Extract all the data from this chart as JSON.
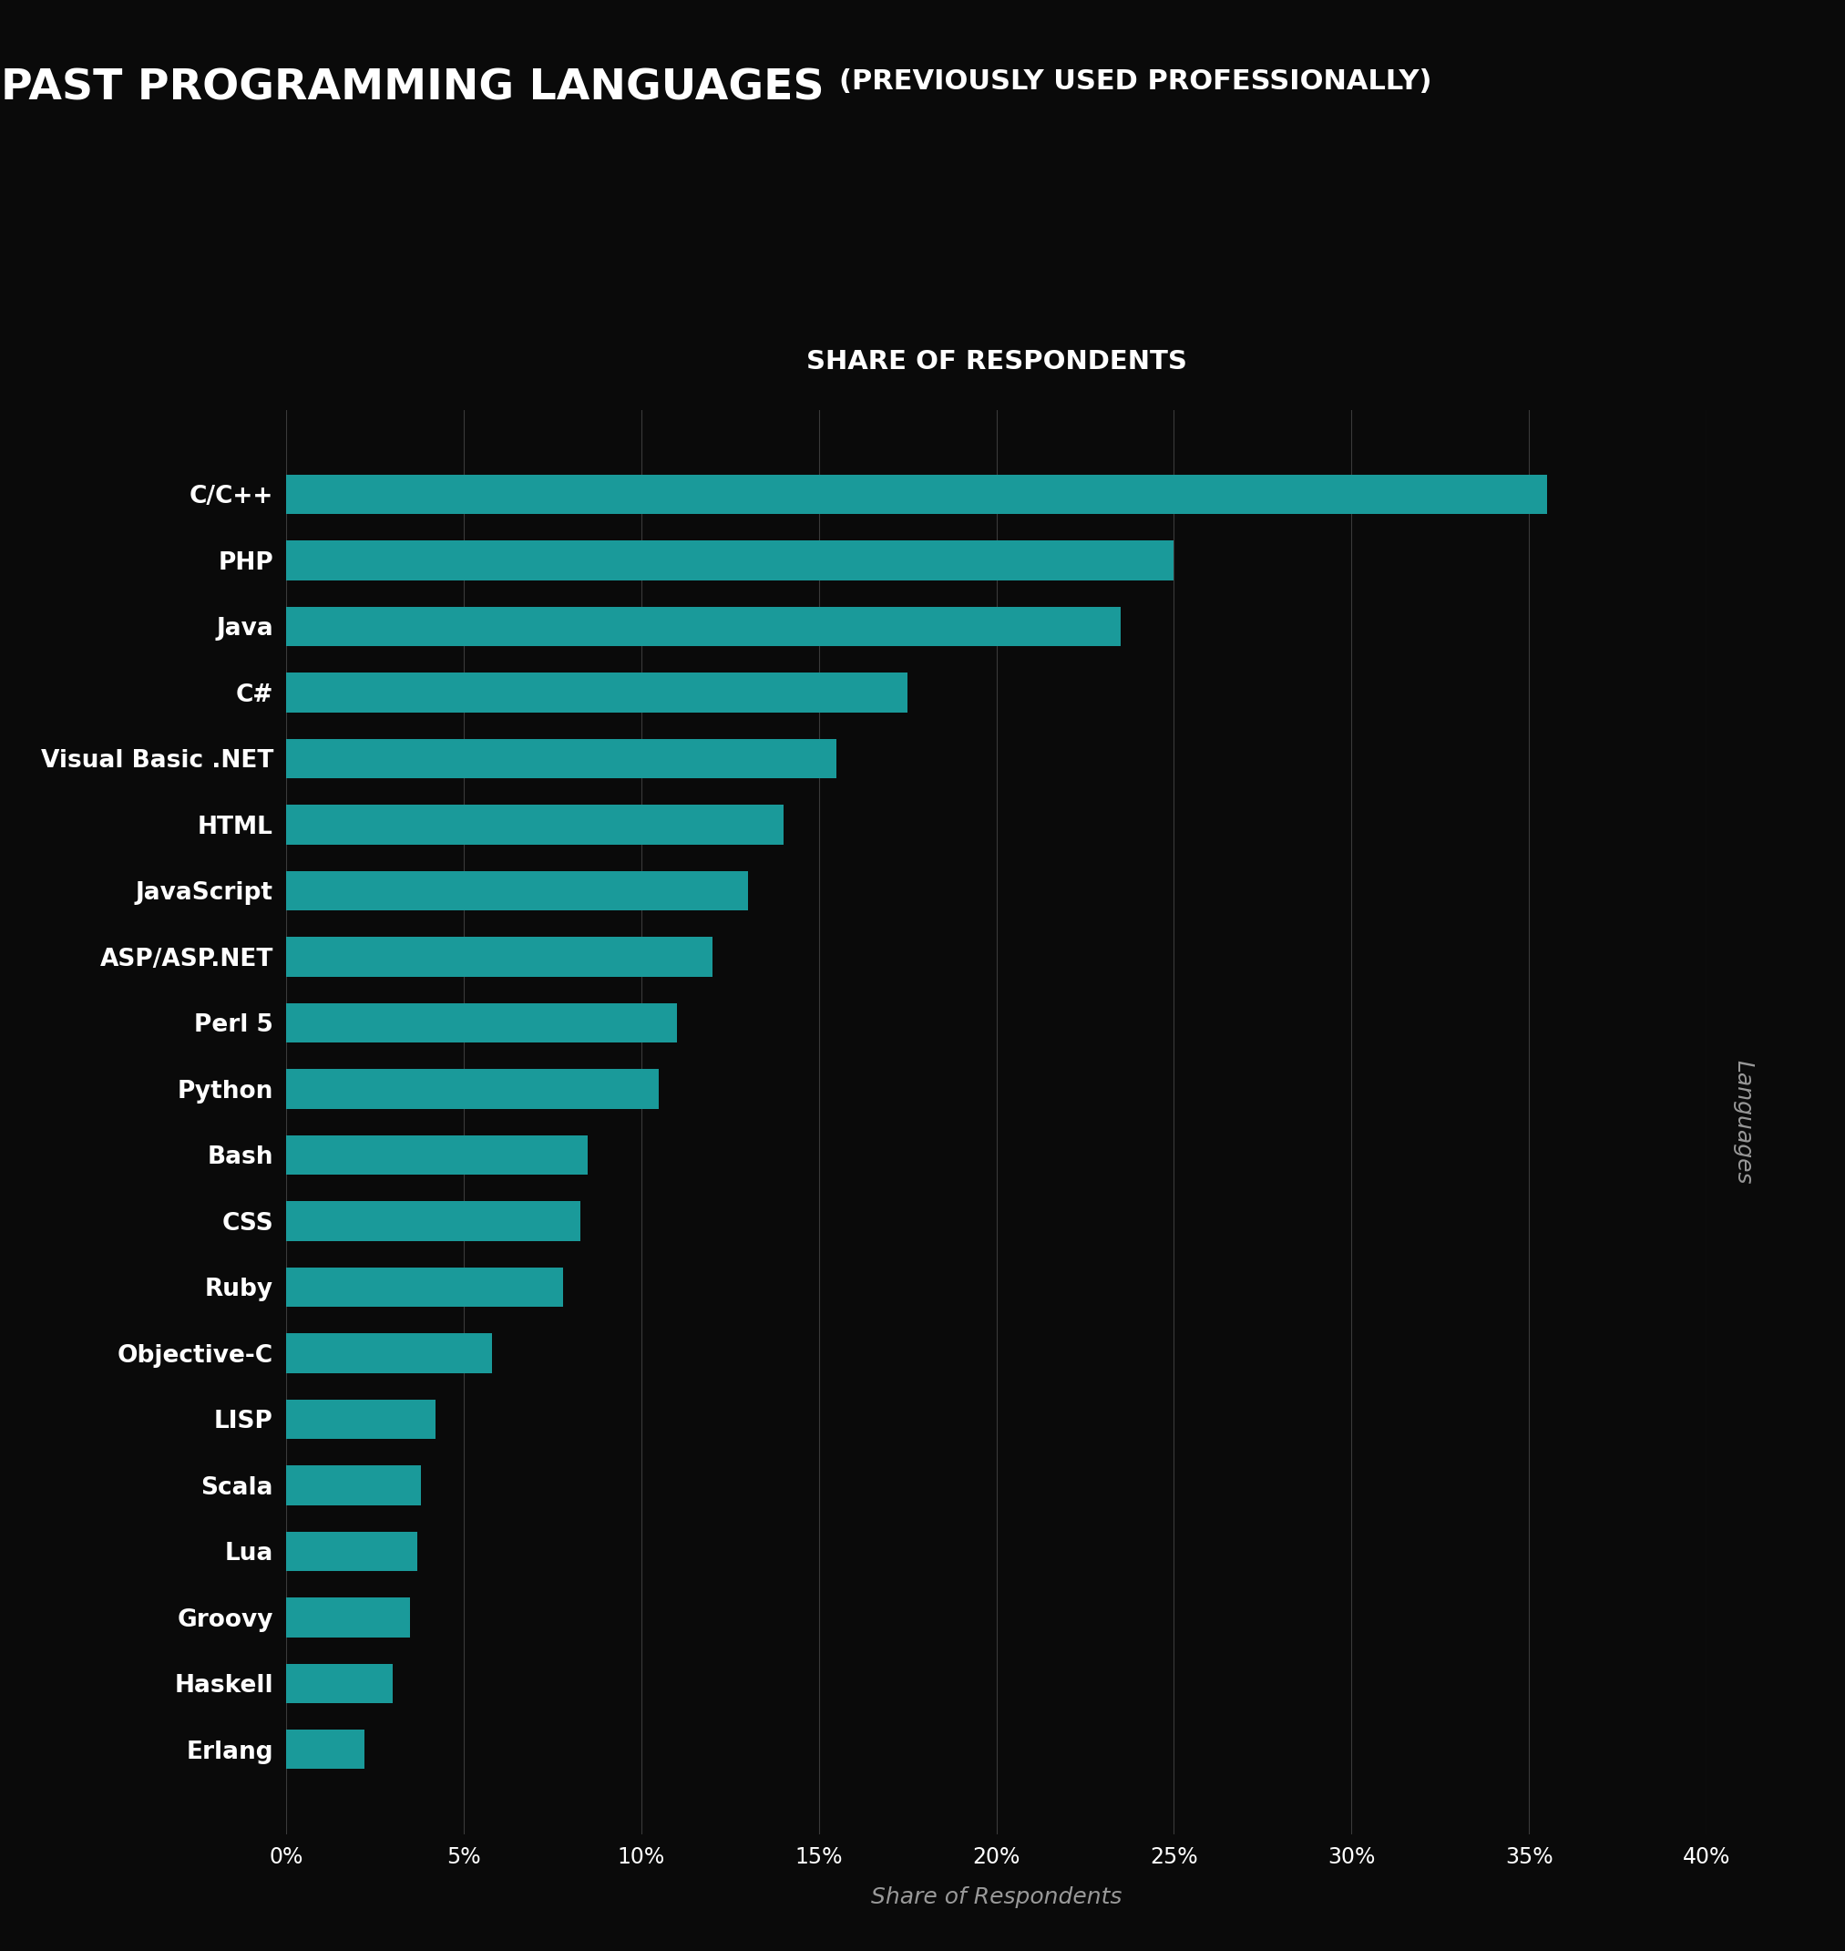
{
  "title_main": "PAST PROGRAMMING LANGUAGES",
  "title_sub": "(PREVIOUSLY USED PROFESSIONALLY)",
  "subtitle": "SHARE OF RESPONDENTS",
  "xlabel": "Share of Respondents",
  "ylabel": "Languages",
  "categories": [
    "C/C++",
    "PHP",
    "Java",
    "C#",
    "Visual Basic .NET",
    "HTML",
    "JavaScript",
    "ASP/ASP.NET",
    "Perl 5",
    "Python",
    "Bash",
    "CSS",
    "Ruby",
    "Objective-C",
    "LISP",
    "Scala",
    "Lua",
    "Groovy",
    "Haskell",
    "Erlang"
  ],
  "values": [
    35.5,
    25.0,
    23.5,
    17.5,
    15.5,
    14.0,
    13.0,
    12.0,
    11.0,
    10.5,
    8.5,
    8.3,
    7.8,
    5.8,
    4.2,
    3.8,
    3.7,
    3.5,
    3.0,
    2.2
  ],
  "bar_color": "#1a9a9a",
  "bg_color": "#0a0a0a",
  "text_color": "#ffffff",
  "grid_color": "#3a3a3a",
  "xlabel_color": "#999999",
  "ylabel_color": "#999999",
  "xlim": [
    0,
    40
  ],
  "xticks": [
    0,
    5,
    10,
    15,
    20,
    25,
    30,
    35,
    40
  ],
  "xtick_labels": [
    "0%",
    "5%",
    "10%",
    "15%",
    "20%",
    "25%",
    "30%",
    "35%",
    "40%"
  ]
}
